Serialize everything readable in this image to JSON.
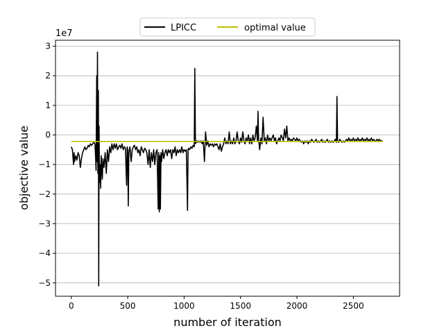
{
  "chart_data": {
    "type": "line",
    "title": "",
    "xlabel": "number of iteration",
    "ylabel": "objective value",
    "y_offset_label": "1e7",
    "xlim": [
      -140,
      2910
    ],
    "ylim": [
      -5.45,
      3.2
    ],
    "x_ticks": [
      0,
      500,
      1000,
      1500,
      2000,
      2500
    ],
    "x_tick_labels": [
      "0",
      "500",
      "1000",
      "1500",
      "2000",
      "2500"
    ],
    "y_ticks": [
      -5,
      -4,
      -3,
      -2,
      -1,
      0,
      1,
      2,
      3
    ],
    "y_tick_labels": [
      "−5",
      "−4",
      "−3",
      "−2",
      "−1",
      "0",
      "1",
      "2",
      "3"
    ],
    "grid": "y",
    "legend": {
      "placement": "top-center",
      "columns": 2
    },
    "series": [
      {
        "name": "LPICC",
        "color": "#000000",
        "points": [
          [
            0,
            -0.4
          ],
          [
            10,
            -0.5
          ],
          [
            20,
            -1.0
          ],
          [
            25,
            -0.6
          ],
          [
            30,
            -0.9
          ],
          [
            40,
            -0.7
          ],
          [
            50,
            -0.85
          ],
          [
            60,
            -0.6
          ],
          [
            70,
            -0.7
          ],
          [
            80,
            -1.1
          ],
          [
            90,
            -0.8
          ],
          [
            100,
            -0.6
          ],
          [
            110,
            -0.5
          ],
          [
            120,
            -0.4
          ],
          [
            130,
            -0.5
          ],
          [
            140,
            -0.45
          ],
          [
            150,
            -0.35
          ],
          [
            160,
            -0.4
          ],
          [
            170,
            -0.3
          ],
          [
            180,
            -0.35
          ],
          [
            190,
            -0.3
          ],
          [
            200,
            -0.25
          ],
          [
            210,
            -0.3
          ],
          [
            215,
            -0.7
          ],
          [
            220,
            -1.2
          ],
          [
            225,
            2.0
          ],
          [
            228,
            -0.9
          ],
          [
            232,
            2.8
          ],
          [
            236,
            -1.3
          ],
          [
            240,
            1.5
          ],
          [
            243,
            -5.1
          ],
          [
            246,
            0.3
          ],
          [
            250,
            -1.6
          ],
          [
            255,
            -1.0
          ],
          [
            260,
            -1.8
          ],
          [
            265,
            -0.7
          ],
          [
            270,
            -1.2
          ],
          [
            275,
            -1.5
          ],
          [
            280,
            -0.8
          ],
          [
            290,
            -1.1
          ],
          [
            300,
            -0.6
          ],
          [
            310,
            -1.3
          ],
          [
            320,
            -0.5
          ],
          [
            330,
            -0.9
          ],
          [
            340,
            -0.4
          ],
          [
            350,
            -0.6
          ],
          [
            360,
            -0.3
          ],
          [
            370,
            -0.5
          ],
          [
            380,
            -0.3
          ],
          [
            390,
            -0.45
          ],
          [
            400,
            -0.3
          ],
          [
            410,
            -0.5
          ],
          [
            420,
            -0.4
          ],
          [
            430,
            -0.35
          ],
          [
            440,
            -0.45
          ],
          [
            450,
            -0.3
          ],
          [
            460,
            -0.5
          ],
          [
            470,
            -0.4
          ],
          [
            480,
            -0.45
          ],
          [
            490,
            -1.7
          ],
          [
            495,
            -0.4
          ],
          [
            500,
            -0.5
          ],
          [
            505,
            -2.4
          ],
          [
            510,
            -0.6
          ],
          [
            520,
            -0.4
          ],
          [
            530,
            -0.9
          ],
          [
            540,
            -0.5
          ],
          [
            550,
            -0.4
          ],
          [
            560,
            -0.35
          ],
          [
            570,
            -0.5
          ],
          [
            580,
            -0.4
          ],
          [
            590,
            -0.6
          ],
          [
            600,
            -0.5
          ],
          [
            610,
            -0.7
          ],
          [
            620,
            -0.4
          ],
          [
            630,
            -0.5
          ],
          [
            640,
            -0.6
          ],
          [
            650,
            -0.45
          ],
          [
            660,
            -0.5
          ],
          [
            670,
            -0.6
          ],
          [
            680,
            -1.0
          ],
          [
            690,
            -0.5
          ],
          [
            700,
            -1.1
          ],
          [
            710,
            -0.6
          ],
          [
            720,
            -0.9
          ],
          [
            730,
            -0.5
          ],
          [
            740,
            -1.0
          ],
          [
            750,
            -0.6
          ],
          [
            760,
            -0.5
          ],
          [
            770,
            -2.5
          ],
          [
            775,
            -0.6
          ],
          [
            780,
            -2.6
          ],
          [
            785,
            -0.7
          ],
          [
            790,
            -2.5
          ],
          [
            795,
            -0.6
          ],
          [
            800,
            -0.9
          ],
          [
            810,
            -0.5
          ],
          [
            820,
            -0.8
          ],
          [
            830,
            -0.6
          ],
          [
            840,
            -0.5
          ],
          [
            850,
            -0.7
          ],
          [
            860,
            -0.5
          ],
          [
            870,
            -0.6
          ],
          [
            880,
            -0.5
          ],
          [
            890,
            -0.8
          ],
          [
            900,
            -0.5
          ],
          [
            910,
            -0.6
          ],
          [
            920,
            -0.4
          ],
          [
            930,
            -0.7
          ],
          [
            940,
            -0.5
          ],
          [
            950,
            -0.6
          ],
          [
            960,
            -0.5
          ],
          [
            970,
            -0.6
          ],
          [
            980,
            -0.4
          ],
          [
            990,
            -0.6
          ],
          [
            1000,
            -0.5
          ],
          [
            1010,
            -0.55
          ],
          [
            1020,
            -0.5
          ],
          [
            1030,
            -2.55
          ],
          [
            1035,
            -0.5
          ],
          [
            1040,
            -0.45
          ],
          [
            1050,
            -0.5
          ],
          [
            1060,
            -0.4
          ],
          [
            1070,
            -0.45
          ],
          [
            1080,
            -0.35
          ],
          [
            1090,
            -0.4
          ],
          [
            1095,
            2.25
          ],
          [
            1100,
            -0.3
          ],
          [
            1110,
            -0.2
          ],
          [
            1120,
            -0.25
          ],
          [
            1130,
            -0.2
          ],
          [
            1140,
            -0.25
          ],
          [
            1150,
            -0.2
          ],
          [
            1160,
            -0.3
          ],
          [
            1170,
            -0.2
          ],
          [
            1180,
            -0.9
          ],
          [
            1190,
            0.1
          ],
          [
            1200,
            -0.35
          ],
          [
            1210,
            -0.2
          ],
          [
            1220,
            -0.4
          ],
          [
            1230,
            -0.3
          ],
          [
            1240,
            -0.35
          ],
          [
            1250,
            -0.3
          ],
          [
            1260,
            -0.4
          ],
          [
            1270,
            -0.3
          ],
          [
            1280,
            -0.35
          ],
          [
            1290,
            -0.3
          ],
          [
            1300,
            -0.4
          ],
          [
            1310,
            -0.5
          ],
          [
            1320,
            -0.3
          ],
          [
            1330,
            -0.55
          ],
          [
            1340,
            -0.4
          ],
          [
            1350,
            -0.3
          ],
          [
            1360,
            -0.1
          ],
          [
            1370,
            -0.3
          ],
          [
            1380,
            -0.2
          ],
          [
            1390,
            -0.3
          ],
          [
            1400,
            0.1
          ],
          [
            1410,
            -0.3
          ],
          [
            1420,
            -0.2
          ],
          [
            1430,
            -0.3
          ],
          [
            1440,
            -0.1
          ],
          [
            1450,
            -0.3
          ],
          [
            1460,
            -0.2
          ],
          [
            1470,
            0.1
          ],
          [
            1480,
            -0.2
          ],
          [
            1490,
            -0.3
          ],
          [
            1500,
            -0.1
          ],
          [
            1510,
            -0.25
          ],
          [
            1520,
            0.1
          ],
          [
            1530,
            -0.2
          ],
          [
            1540,
            -0.3
          ],
          [
            1550,
            -0.1
          ],
          [
            1560,
            -0.2
          ],
          [
            1570,
            0.0
          ],
          [
            1580,
            -0.3
          ],
          [
            1590,
            -0.1
          ],
          [
            1600,
            -0.3
          ],
          [
            1610,
            0.0
          ],
          [
            1620,
            -0.2
          ],
          [
            1630,
            -0.1
          ],
          [
            1640,
            0.3
          ],
          [
            1650,
            -0.2
          ],
          [
            1655,
            0.8
          ],
          [
            1660,
            -0.1
          ],
          [
            1670,
            -0.5
          ],
          [
            1680,
            -0.1
          ],
          [
            1690,
            -0.3
          ],
          [
            1700,
            0.6
          ],
          [
            1710,
            -0.2
          ],
          [
            1720,
            -0.1
          ],
          [
            1730,
            -0.3
          ],
          [
            1740,
            0.0
          ],
          [
            1750,
            -0.2
          ],
          [
            1760,
            -0.1
          ],
          [
            1770,
            -0.2
          ],
          [
            1780,
            -0.1
          ],
          [
            1790,
            0.0
          ],
          [
            1800,
            -0.2
          ],
          [
            1810,
            -0.1
          ],
          [
            1820,
            -0.3
          ],
          [
            1830,
            -0.2
          ],
          [
            1840,
            -0.1
          ],
          [
            1850,
            -0.2
          ],
          [
            1860,
            0.0
          ],
          [
            1870,
            -0.1
          ],
          [
            1880,
            -0.2
          ],
          [
            1890,
            0.2
          ],
          [
            1900,
            -0.1
          ],
          [
            1910,
            0.3
          ],
          [
            1920,
            -0.2
          ],
          [
            1930,
            -0.1
          ],
          [
            1940,
            -0.2
          ],
          [
            1950,
            -0.15
          ],
          [
            1960,
            -0.2
          ],
          [
            1970,
            -0.1
          ],
          [
            1980,
            -0.15
          ],
          [
            1990,
            -0.2
          ],
          [
            2000,
            -0.1
          ],
          [
            2010,
            -0.2
          ],
          [
            2020,
            -0.15
          ],
          [
            2030,
            -0.2
          ],
          [
            2040,
            -0.25
          ],
          [
            2050,
            -0.2
          ],
          [
            2060,
            -0.3
          ],
          [
            2070,
            -0.2
          ],
          [
            2080,
            -0.25
          ],
          [
            2090,
            -0.2
          ],
          [
            2100,
            -0.3
          ],
          [
            2110,
            -0.2
          ],
          [
            2120,
            -0.25
          ],
          [
            2130,
            -0.15
          ],
          [
            2140,
            -0.2
          ],
          [
            2150,
            -0.25
          ],
          [
            2160,
            -0.2
          ],
          [
            2170,
            -0.15
          ],
          [
            2180,
            -0.25
          ],
          [
            2190,
            -0.2
          ],
          [
            2200,
            -0.25
          ],
          [
            2210,
            -0.2
          ],
          [
            2220,
            -0.15
          ],
          [
            2230,
            -0.25
          ],
          [
            2240,
            -0.2
          ],
          [
            2250,
            -0.25
          ],
          [
            2260,
            -0.2
          ],
          [
            2270,
            -0.15
          ],
          [
            2280,
            -0.25
          ],
          [
            2290,
            -0.2
          ],
          [
            2300,
            -0.25
          ],
          [
            2310,
            -0.2
          ],
          [
            2320,
            -0.25
          ],
          [
            2330,
            -0.2
          ],
          [
            2340,
            -0.15
          ],
          [
            2350,
            -0.25
          ],
          [
            2355,
            1.3
          ],
          [
            2360,
            -0.2
          ],
          [
            2370,
            -0.25
          ],
          [
            2380,
            -0.15
          ],
          [
            2390,
            -0.2
          ],
          [
            2400,
            -0.25
          ],
          [
            2410,
            -0.2
          ],
          [
            2420,
            -0.25
          ],
          [
            2430,
            -0.2
          ],
          [
            2440,
            -0.15
          ],
          [
            2450,
            -0.2
          ],
          [
            2460,
            -0.1
          ],
          [
            2470,
            -0.2
          ],
          [
            2480,
            -0.15
          ],
          [
            2490,
            -0.2
          ],
          [
            2500,
            -0.1
          ],
          [
            2510,
            -0.2
          ],
          [
            2520,
            -0.15
          ],
          [
            2530,
            -0.2
          ],
          [
            2540,
            -0.1
          ],
          [
            2550,
            -0.2
          ],
          [
            2560,
            -0.15
          ],
          [
            2570,
            -0.2
          ],
          [
            2580,
            -0.1
          ],
          [
            2590,
            -0.2
          ],
          [
            2600,
            -0.15
          ],
          [
            2610,
            -0.2
          ],
          [
            2620,
            -0.1
          ],
          [
            2630,
            -0.2
          ],
          [
            2640,
            -0.15
          ],
          [
            2650,
            -0.2
          ],
          [
            2660,
            -0.1
          ],
          [
            2670,
            -0.2
          ],
          [
            2680,
            -0.15
          ],
          [
            2690,
            -0.2
          ],
          [
            2700,
            -0.2
          ],
          [
            2710,
            -0.15
          ],
          [
            2720,
            -0.2
          ],
          [
            2730,
            -0.15
          ],
          [
            2740,
            -0.2
          ],
          [
            2750,
            -0.2
          ],
          [
            2760,
            -0.2
          ]
        ]
      },
      {
        "name": "optimal value",
        "color": "#bfbf00",
        "points": [
          [
            0,
            -0.22
          ],
          [
            2760,
            -0.22
          ]
        ]
      }
    ]
  }
}
